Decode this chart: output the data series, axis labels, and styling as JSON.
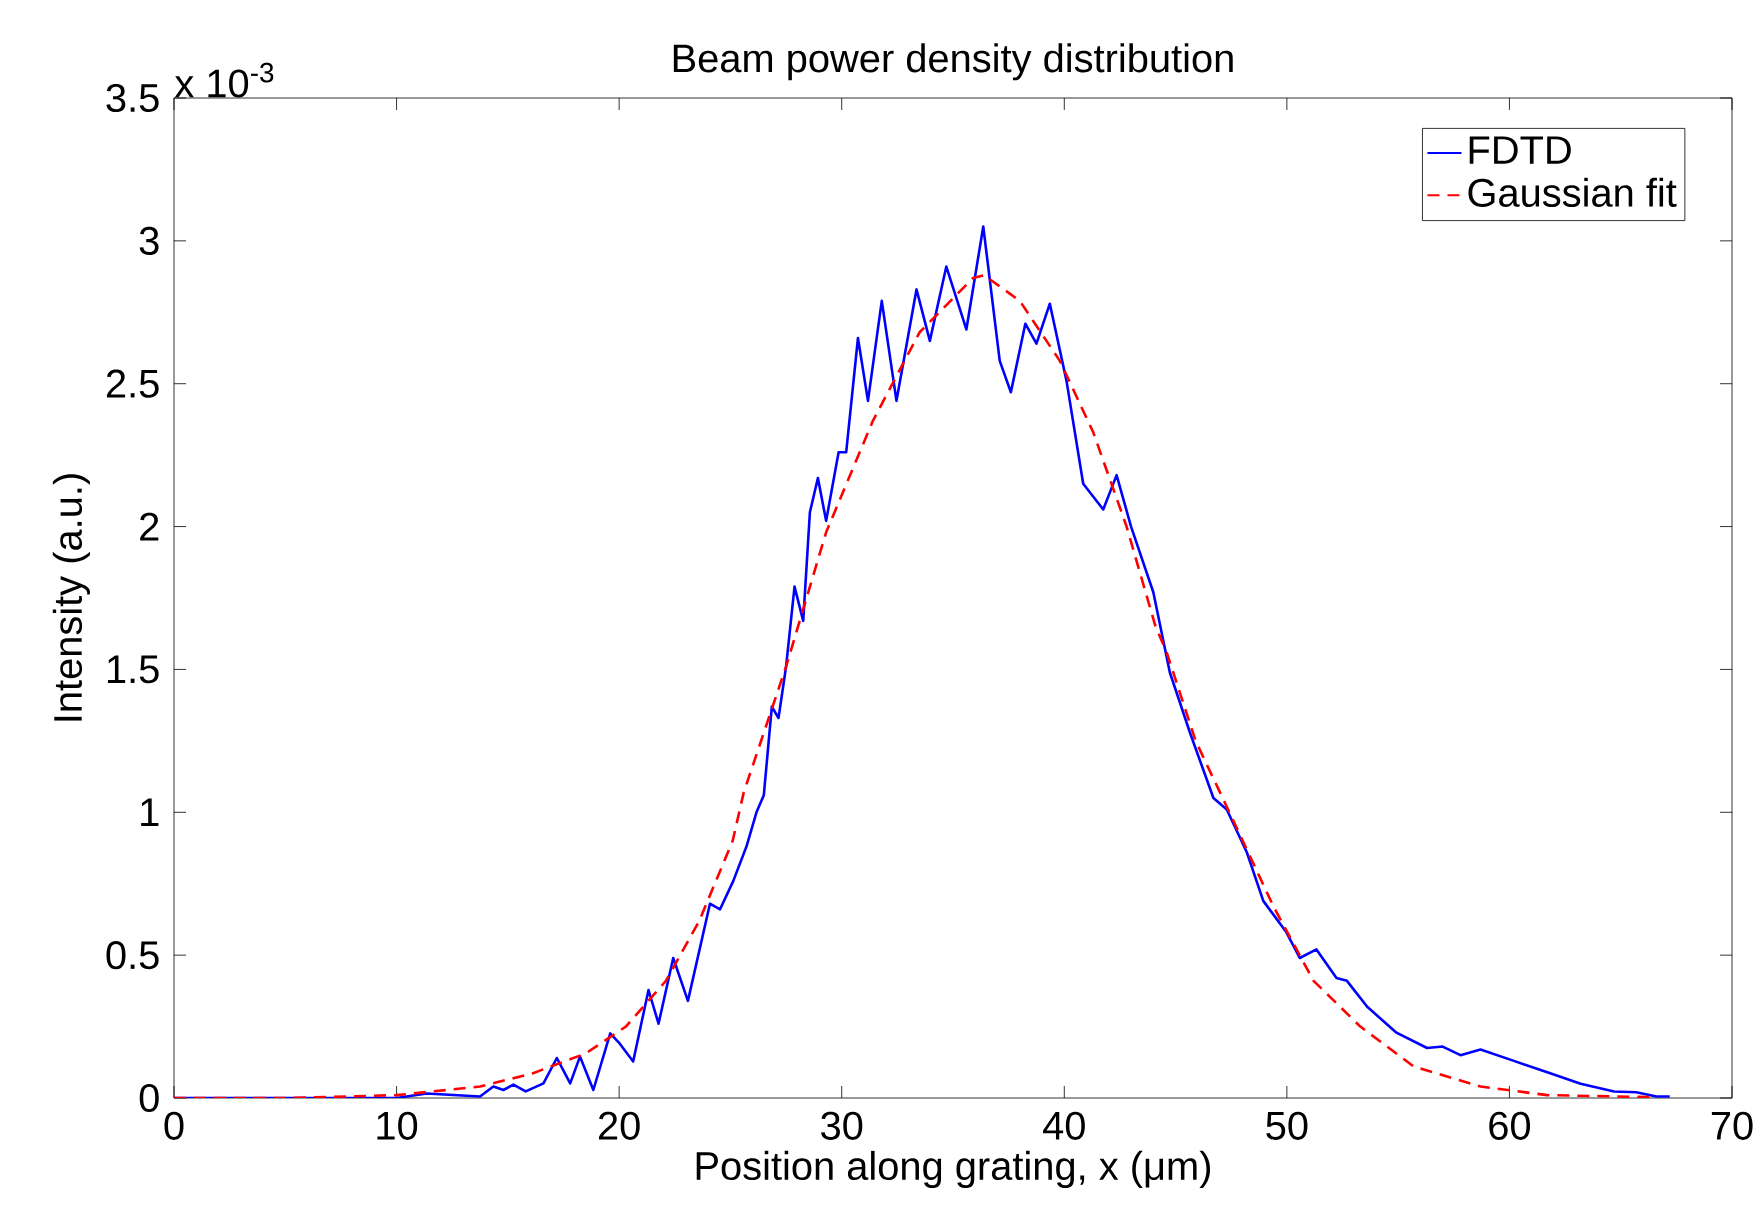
{
  "chart_data": {
    "type": "line",
    "title": "Beam power density distribution",
    "xlabel": "Position along grating, x (μm)",
    "ylabel": "Intensity (a.u.)",
    "annotations": [
      "x 10$^{-3}$"
    ],
    "xlim": [
      0,
      70
    ],
    "ylim": [
      0,
      3.5
    ],
    "xticks": [
      0,
      10,
      20,
      30,
      40,
      50,
      60,
      70
    ],
    "yticks": [
      0,
      0.5,
      1,
      1.5,
      2,
      2.5,
      3,
      3.5
    ],
    "legend": "top right",
    "series": [
      {
        "name": "FDTD",
        "color": "#0000ff",
        "line_style": "solid",
        "x": [
          0,
          10,
          11.35,
          13.75,
          14.35,
          14.8,
          15.25,
          15.8,
          16.6,
          17.2,
          17.8,
          18.24,
          18.84,
          19.6,
          20.03,
          20.63,
          21.32,
          21.77,
          22.43,
          23.09,
          24.08,
          24.53,
          25.13,
          25.72,
          26.17,
          26.5,
          26.86,
          27.16,
          27.5,
          27.88,
          28.27,
          28.57,
          28.93,
          29.3,
          29.86,
          30.2,
          30.73,
          31.18,
          31.8,
          32.46,
          33.36,
          33.96,
          34.7,
          35.6,
          36.36,
          37.1,
          37.6,
          38.25,
          38.75,
          39.35,
          40.1,
          40.85,
          41.75,
          42.35,
          43.0,
          44.0,
          44.74,
          45.64,
          46.7,
          47.3,
          48.2,
          48.94,
          49.98,
          50.58,
          51.33,
          52.23,
          52.7,
          53.6,
          54.9,
          56.3,
          57.0,
          57.8,
          58.7,
          60.2,
          61.7,
          63.2,
          64.7,
          65.7,
          66.6,
          67.2
        ],
        "values": [
          0,
          0,
          0.016,
          0.005,
          0.04,
          0.028,
          0.047,
          0.023,
          0.051,
          0.14,
          0.051,
          0.145,
          0.028,
          0.226,
          0.19,
          0.128,
          0.378,
          0.26,
          0.49,
          0.34,
          0.68,
          0.66,
          0.76,
          0.88,
          1.0,
          1.06,
          1.37,
          1.33,
          1.51,
          1.79,
          1.67,
          2.05,
          2.17,
          2.02,
          2.26,
          2.26,
          2.66,
          2.44,
          2.79,
          2.44,
          2.83,
          2.65,
          2.91,
          2.69,
          3.05,
          2.58,
          2.47,
          2.71,
          2.64,
          2.78,
          2.51,
          2.15,
          2.06,
          2.18,
          2.0,
          1.77,
          1.49,
          1.28,
          1.05,
          1.01,
          0.86,
          0.69,
          0.58,
          0.49,
          0.52,
          0.42,
          0.41,
          0.32,
          0.23,
          0.175,
          0.18,
          0.15,
          0.17,
          0.13,
          0.09,
          0.05,
          0.023,
          0.02,
          0.005,
          0.005
        ]
      },
      {
        "name": "Gaussian fit",
        "color": "#ff0000",
        "line_style": "dashed",
        "x": [
          0,
          5,
          10,
          13.75,
          16.1,
          18.5,
          20.3,
          22.1,
          23.6,
          25.1,
          25.6,
          27.5,
          29.3,
          31.4,
          33.5,
          35.9,
          36.4,
          38.0,
          39.8,
          41.3,
          42.8,
          44.1,
          44.6,
          45.9,
          47.6,
          49.4,
          51.2,
          53.3,
          55.7,
          58.7,
          61.7,
          66.5
        ],
        "values": [
          0,
          0,
          0.01,
          0.04,
          0.086,
          0.156,
          0.25,
          0.41,
          0.62,
          0.9,
          1.07,
          1.51,
          1.98,
          2.37,
          2.68,
          2.87,
          2.88,
          2.79,
          2.58,
          2.33,
          2.0,
          1.65,
          1.56,
          1.25,
          0.97,
          0.67,
          0.41,
          0.25,
          0.11,
          0.04,
          0.01,
          0.003
        ]
      }
    ]
  }
}
